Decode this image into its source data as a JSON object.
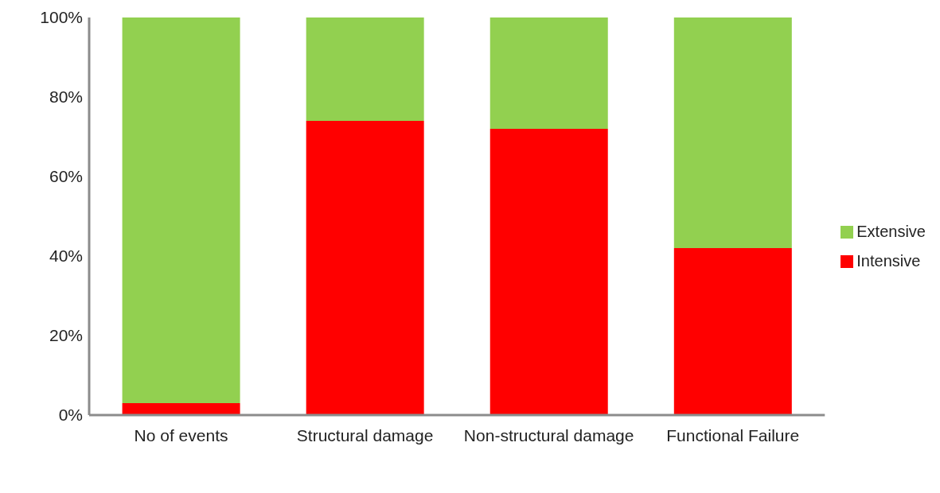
{
  "chart_data": {
    "type": "bar",
    "stacked": true,
    "categories": [
      "No of events",
      "Structural damage",
      "Non-structural damage",
      "Functional Failure"
    ],
    "series": [
      {
        "name": "Intensive",
        "color": "#ff0000",
        "values": [
          3,
          74,
          72,
          42
        ]
      },
      {
        "name": "Extensive",
        "color": "#92d050",
        "values": [
          97,
          26,
          28,
          58
        ]
      }
    ],
    "ylim": [
      0,
      100
    ],
    "yticks": [
      {
        "value": 0,
        "label": "0%"
      },
      {
        "value": 20,
        "label": "20%"
      },
      {
        "value": 40,
        "label": "40%"
      },
      {
        "value": 60,
        "label": "60%"
      },
      {
        "value": 80,
        "label": "80%"
      },
      {
        "value": 100,
        "label": "100%"
      }
    ],
    "grid": false,
    "legend": "right"
  }
}
